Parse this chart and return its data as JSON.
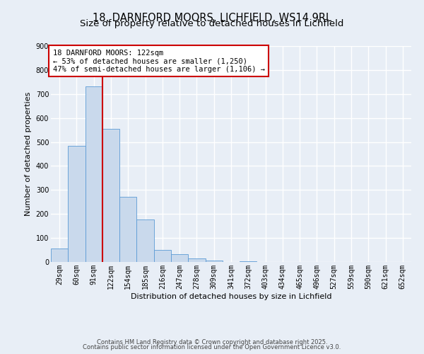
{
  "title": "18, DARNFORD MOORS, LICHFIELD, WS14 9RL",
  "subtitle": "Size of property relative to detached houses in Lichfield",
  "bar_values": [
    57,
    483,
    733,
    554,
    272,
    176,
    49,
    33,
    14,
    5,
    0,
    4,
    0,
    0,
    0,
    0,
    0,
    0,
    0,
    0,
    0
  ],
  "bin_labels": [
    "29sqm",
    "60sqm",
    "91sqm",
    "122sqm",
    "154sqm",
    "185sqm",
    "216sqm",
    "247sqm",
    "278sqm",
    "309sqm",
    "341sqm",
    "372sqm",
    "403sqm",
    "434sqm",
    "465sqm",
    "496sqm",
    "527sqm",
    "559sqm",
    "590sqm",
    "621sqm",
    "652sqm"
  ],
  "bar_color": "#c9d9ec",
  "bar_edge_color": "#5b9bd5",
  "vline_x": 3,
  "vline_color": "#cc0000",
  "ylim": [
    0,
    900
  ],
  "yticks": [
    0,
    100,
    200,
    300,
    400,
    500,
    600,
    700,
    800,
    900
  ],
  "ylabel": "Number of detached properties",
  "xlabel": "Distribution of detached houses by size in Lichfield",
  "annotation_title": "18 DARNFORD MOORS: 122sqm",
  "annotation_line1": "← 53% of detached houses are smaller (1,250)",
  "annotation_line2": "47% of semi-detached houses are larger (1,106) →",
  "annotation_box_color": "#ffffff",
  "annotation_box_edge": "#cc0000",
  "footer1": "Contains HM Land Registry data © Crown copyright and database right 2025.",
  "footer2": "Contains public sector information licensed under the Open Government Licence v3.0.",
  "bg_color": "#e8eef6",
  "plot_bg_color": "#e8eef6",
  "grid_color": "#ffffff",
  "title_fontsize": 10.5,
  "subtitle_fontsize": 9.5,
  "axis_label_fontsize": 8,
  "tick_fontsize": 7,
  "annotation_fontsize": 7.5,
  "footer_fontsize": 6
}
